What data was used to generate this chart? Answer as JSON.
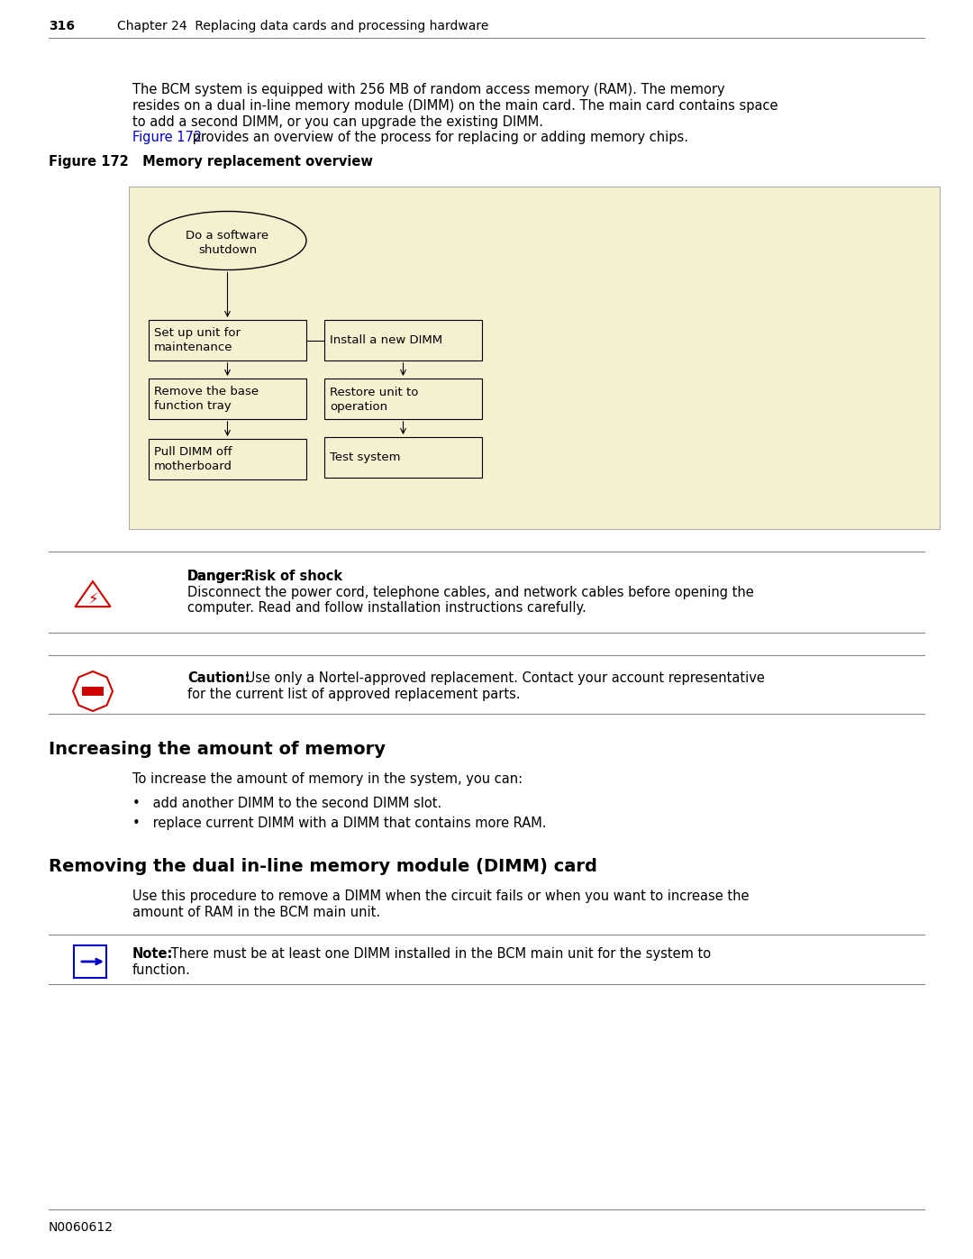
{
  "page_number": "316",
  "header_text": "Chapter 24  Replacing data cards and processing hardware",
  "body_text_1": "The BCM system is equipped with 256 MB of random access memory (RAM). The memory\nresides on a dual in-line memory module (DIMM) on the main card. The main card contains space\nto add a second DIMM, or you can upgrade the existing DIMM.",
  "figure_ref_text": " provides an overview of the process for replacing or adding memory chips.",
  "figure_ref_link": "Figure 172",
  "figure_caption": "Figure 172   Memory replacement overview",
  "flowchart_bg": "#f5f0d0",
  "flowchart_nodes_left": [
    "Do a software\nshutdown",
    "Set up unit for\nmaintenance",
    "Remove the base\nfunction tray",
    "Pull DIMM off\nmotherboard"
  ],
  "flowchart_nodes_right": [
    "Install a new DIMM",
    "Restore unit to\noperation",
    "Test system"
  ],
  "danger_title": "Danger: Risk of shock",
  "danger_text": "Disconnect the power cord, telephone cables, and network cables before opening the\ncomputer. Read and follow installation instructions carefully.",
  "caution_text": "Use only a Nortel-approved replacement. Contact your account representative\nfor the current list of approved replacement parts.",
  "section1_title": "Increasing the amount of memory",
  "section1_intro": "To increase the amount of memory in the system, you can:",
  "section1_bullets": [
    "add another DIMM to the second DIMM slot.",
    "replace current DIMM with a DIMM that contains more RAM."
  ],
  "section2_title": "Removing the dual in-line memory module (DIMM) card",
  "section2_intro": "Use this procedure to remove a DIMM when the circuit fails or when you want to increase the\namount of RAM in the BCM main unit.",
  "note_text": "There must be at least one DIMM installed in the BCM main unit for the system to\nfunction.",
  "footer_text": "N0060612",
  "bg_color": "#ffffff",
  "text_color": "#000000",
  "link_color": "#0000cc",
  "danger_color": "#cc0000",
  "caution_color": "#cc0000",
  "note_color": "#0000cc"
}
